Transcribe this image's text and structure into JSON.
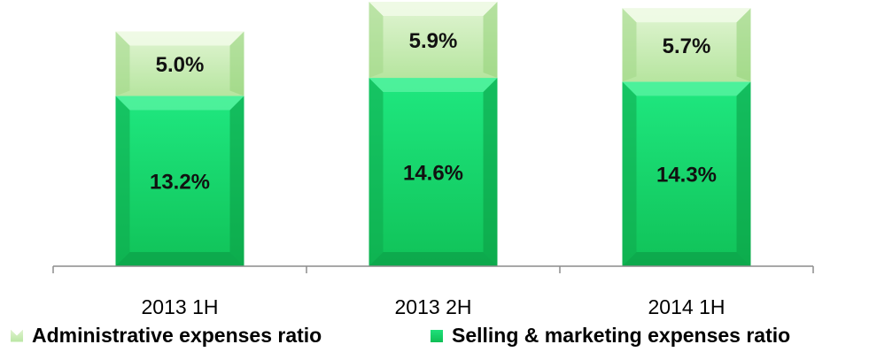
{
  "chart_data": {
    "type": "bar",
    "stacked": true,
    "categories": [
      "2013 1H",
      "2013 2H",
      "2014 1H"
    ],
    "series": [
      {
        "name": "Selling & marketing expenses ratio",
        "values": [
          13.2,
          14.6,
          14.3
        ],
        "labels": [
          "13.2%",
          "14.6%",
          "14.3%"
        ]
      },
      {
        "name": "Administrative expenses ratio",
        "values": [
          5.0,
          5.9,
          5.7
        ],
        "labels": [
          "5.0%",
          "5.9%",
          "5.7%"
        ]
      }
    ],
    "ylim": [
      0,
      20.5
    ],
    "grid": false,
    "legend_position": "bottom",
    "colors": {
      "selling": "#14cf63",
      "admin": "#c4ebb0"
    }
  },
  "legend": {
    "admin_label": "Administrative expenses ratio",
    "selling_label": "Selling & marketing expenses ratio"
  }
}
